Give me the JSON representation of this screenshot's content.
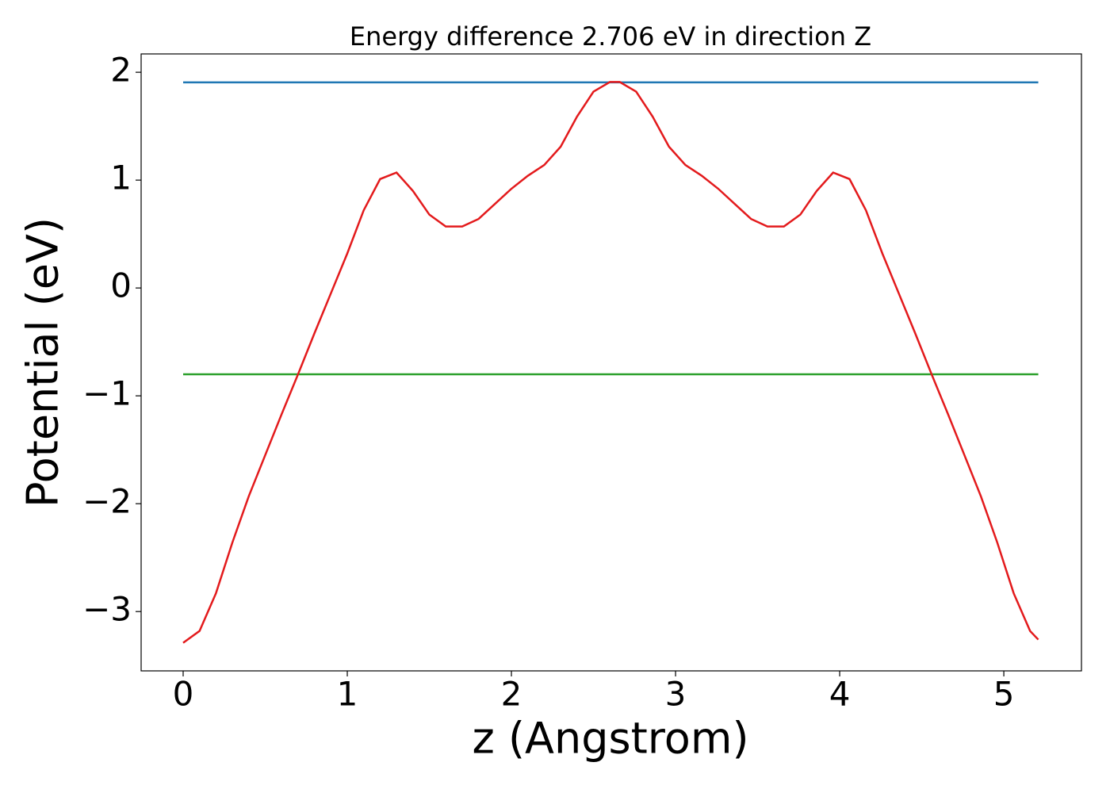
{
  "chart_data": {
    "type": "line",
    "title": "Energy difference 2.706 eV in direction Z",
    "xlabel": "z (Angstrom)",
    "ylabel": "Potential (eV)",
    "xlim": [
      -0.256,
      5.473
    ],
    "ylim": [
      -3.55,
      2.17
    ],
    "xticks": [
      0,
      1,
      2,
      3,
      4,
      5
    ],
    "yticks": [
      {
        "value": -3,
        "label": "−3"
      },
      {
        "value": -2,
        "label": "−2"
      },
      {
        "value": -1,
        "label": "−1"
      },
      0,
      1,
      2
    ],
    "series": [
      {
        "color": "#1f77b4",
        "x": [
          0,
          5.21
        ],
        "values": [
          1.906,
          1.906
        ]
      },
      {
        "color": "#2ca02c",
        "x": [
          0,
          5.21
        ],
        "values": [
          -0.8,
          -0.8
        ]
      },
      {
        "color": "#e31a1c",
        "x": [
          0,
          0.1,
          0.2,
          0.3,
          0.4,
          0.5,
          0.6,
          0.7,
          0.8,
          0.9,
          1.0,
          1.1,
          1.2,
          1.3,
          1.4,
          1.5,
          1.6,
          1.7,
          1.8,
          1.9,
          2.0,
          2.1,
          2.2,
          2.3,
          2.4,
          2.5,
          2.6,
          2.63,
          2.66,
          2.76,
          2.86,
          2.96,
          3.06,
          3.16,
          3.26,
          3.36,
          3.46,
          3.56,
          3.66,
          3.76,
          3.86,
          3.96,
          4.06,
          4.16,
          4.26,
          4.36,
          4.46,
          4.56,
          4.66,
          4.76,
          4.86,
          4.96,
          5.06,
          5.16,
          5.21
        ],
        "values": [
          -3.29,
          -3.18,
          -2.83,
          -2.36,
          -1.93,
          -1.55,
          -1.17,
          -0.8,
          -0.42,
          -0.05,
          0.32,
          0.72,
          1.01,
          1.07,
          0.9,
          0.68,
          0.57,
          0.57,
          0.64,
          0.78,
          0.92,
          1.04,
          1.14,
          1.31,
          1.59,
          1.82,
          1.91,
          1.91,
          1.91,
          1.82,
          1.59,
          1.31,
          1.14,
          1.04,
          0.92,
          0.78,
          0.64,
          0.57,
          0.57,
          0.68,
          0.9,
          1.07,
          1.01,
          0.72,
          0.32,
          -0.05,
          -0.42,
          -0.8,
          -1.17,
          -1.55,
          -1.93,
          -2.36,
          -2.83,
          -3.18,
          -3.26
        ]
      }
    ]
  }
}
